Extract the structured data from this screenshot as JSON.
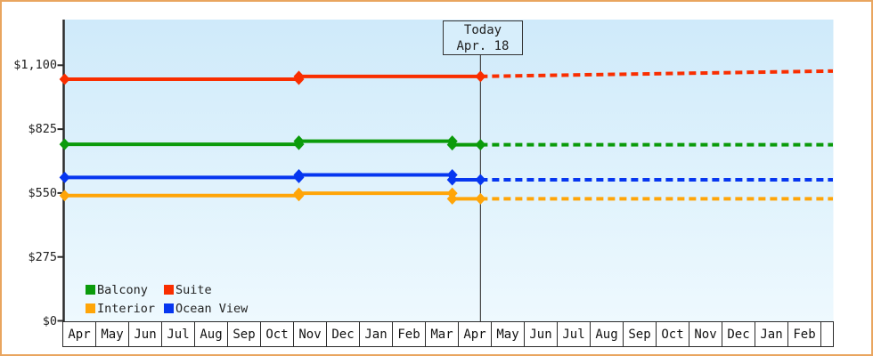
{
  "chart_data": {
    "type": "line",
    "title": "",
    "today": {
      "line1": "Today",
      "line2": "Apr. 18",
      "month_offset": 12.69
    },
    "y_axis": {
      "unit": "$",
      "tick_labels": [
        "$0",
        "$275",
        "$550",
        "$825",
        "$1,100"
      ],
      "tick_values": [
        0,
        275,
        550,
        825,
        1100
      ],
      "range": [
        0,
        1295
      ],
      "grid": false
    },
    "x_axis": {
      "month_labels": [
        "Apr",
        "May",
        "Jun",
        "Jul",
        "Aug",
        "Sep",
        "Oct",
        "Nov",
        "Dec",
        "Jan",
        "Feb",
        "Mar",
        "Apr",
        "May",
        "Jun",
        "Jul",
        "Aug",
        "Sep",
        "Oct",
        "Nov",
        "Dec",
        "Jan",
        "Feb"
      ],
      "visible_span_months": 23.4
    },
    "series": [
      {
        "name": "Suite",
        "color": "#f92e00",
        "solid": [
          [
            0.03,
            1040
          ],
          [
            7.16,
            1040
          ],
          [
            7.16,
            1052
          ],
          [
            12.69,
            1052
          ]
        ],
        "dashed": [
          [
            12.69,
            1052
          ],
          [
            23.42,
            1075
          ]
        ]
      },
      {
        "name": "Balcony",
        "color": "#0b9b0b",
        "solid": [
          [
            0.03,
            760
          ],
          [
            7.16,
            760
          ],
          [
            7.16,
            773
          ],
          [
            11.83,
            773
          ],
          [
            11.83,
            758
          ],
          [
            12.69,
            758
          ]
        ],
        "dashed": [
          [
            12.69,
            758
          ],
          [
            23.42,
            758
          ]
        ]
      },
      {
        "name": "Ocean View",
        "color": "#0636f0",
        "solid": [
          [
            0.03,
            617
          ],
          [
            7.16,
            617
          ],
          [
            7.16,
            628
          ],
          [
            11.83,
            628
          ],
          [
            11.83,
            607
          ],
          [
            12.69,
            607
          ]
        ],
        "dashed": [
          [
            12.69,
            607
          ],
          [
            23.42,
            607
          ]
        ]
      },
      {
        "name": "Interior",
        "color": "#ffa508",
        "solid": [
          [
            0.03,
            539
          ],
          [
            7.16,
            539
          ],
          [
            7.16,
            549
          ],
          [
            11.83,
            549
          ],
          [
            11.83,
            525
          ],
          [
            12.69,
            525
          ]
        ],
        "dashed": [
          [
            12.69,
            525
          ],
          [
            23.42,
            525
          ]
        ]
      }
    ],
    "legend": {
      "position": "bottom-left",
      "items": [
        {
          "label": "Balcony",
          "color": "#0b9b0b"
        },
        {
          "label": "Suite",
          "color": "#f92e00"
        },
        {
          "label": "Interior",
          "color": "#ffa508"
        },
        {
          "label": "Ocean View",
          "color": "#0636f0"
        }
      ]
    }
  },
  "colors": {
    "frame_border": "#e9a55f",
    "plot_bg_top": "#cfeafa",
    "plot_bg_bottom": "#eef9fe",
    "axis": "#2b2b2b",
    "tick_text": "#222222",
    "today_line": "#444444",
    "today_box_bg": "#d7eefb",
    "today_box_border": "#333333",
    "month_cell_bg": "#ffffff",
    "month_cell_border": "#2b2b2b"
  }
}
